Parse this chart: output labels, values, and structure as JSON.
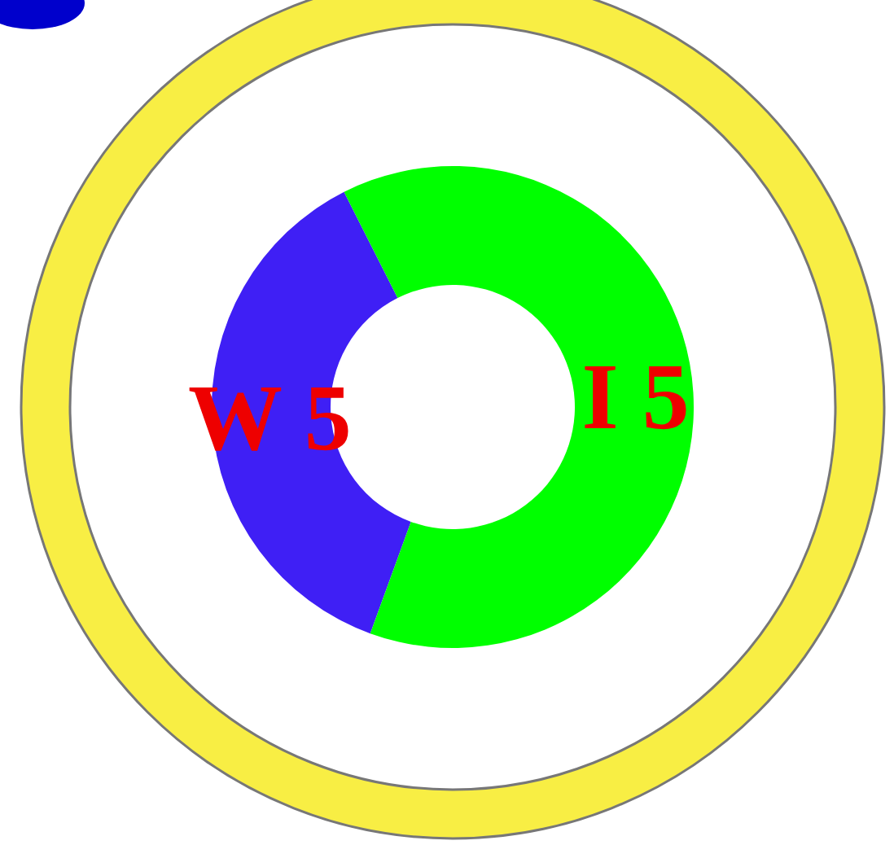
{
  "chart_data": {
    "type": "donut",
    "categories": [
      "W 5",
      "I 5"
    ],
    "values": [
      37,
      63
    ],
    "colors": [
      "#3f1ff5",
      "#00ff00"
    ]
  }
}
